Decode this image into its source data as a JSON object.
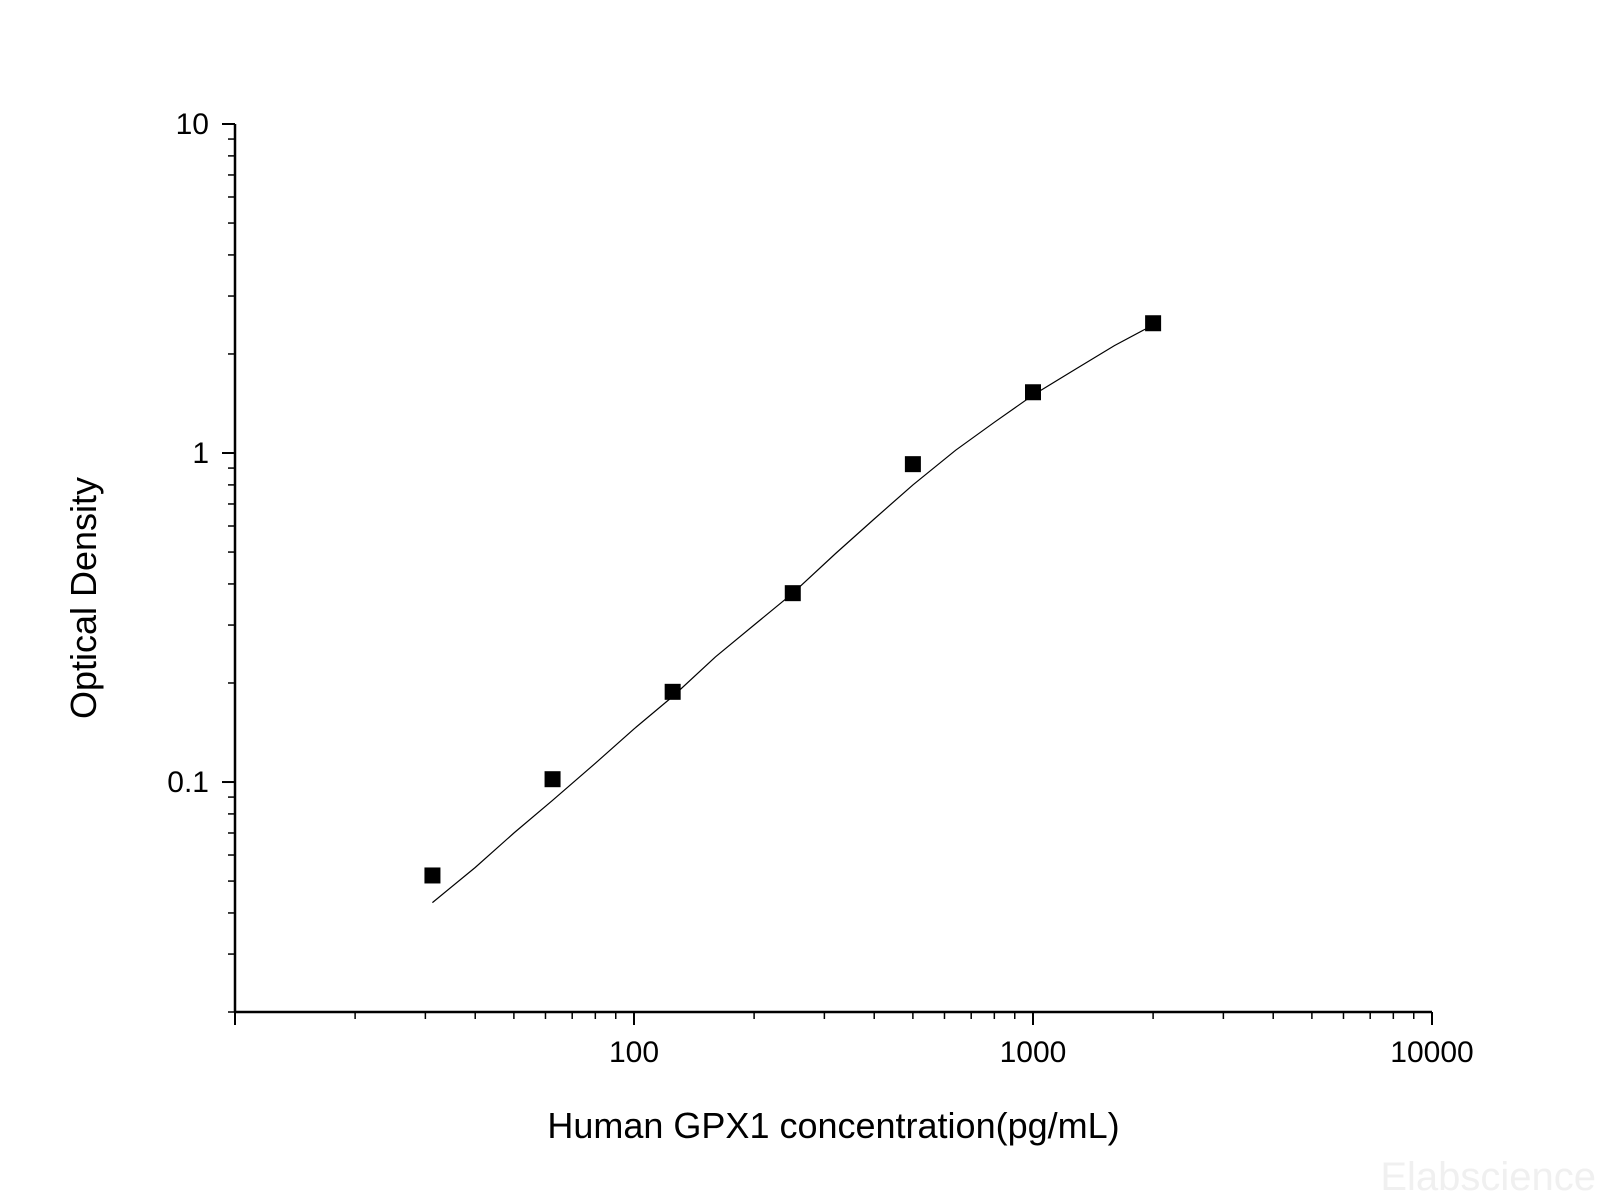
{
  "chart_data": {
    "type": "scatter",
    "xlabel": "Human GPX1 concentration(pg/mL)",
    "ylabel": "Optical Density",
    "xscale": "log",
    "yscale": "log",
    "xlim": [
      10,
      10000
    ],
    "ylim": [
      0.02,
      10
    ],
    "grid": false,
    "x_ticks": [
      100,
      1000,
      10000
    ],
    "x_tick_labels": [
      "100",
      "1000",
      "10000"
    ],
    "y_ticks": [
      0.1,
      1,
      10
    ],
    "y_tick_labels": [
      "0.1",
      "1",
      "10"
    ],
    "points": {
      "x": [
        31.25,
        62.5,
        125,
        250,
        500,
        1000,
        2000
      ],
      "y": [
        0.052,
        0.102,
        0.188,
        0.375,
        0.925,
        1.53,
        2.48
      ]
    },
    "fit_curve": {
      "x": [
        31.25,
        40,
        50,
        62.5,
        80,
        100,
        125,
        160,
        200,
        250,
        320,
        400,
        500,
        640,
        800,
        1000,
        1280,
        1600,
        2000
      ],
      "y": [
        0.043,
        0.055,
        0.07,
        0.088,
        0.114,
        0.145,
        0.182,
        0.24,
        0.3,
        0.375,
        0.495,
        0.63,
        0.8,
        1.02,
        1.24,
        1.5,
        1.8,
        2.12,
        2.45
      ]
    },
    "marker_color": "#000000",
    "line_color": "#000000"
  },
  "watermark": "Elabscience"
}
